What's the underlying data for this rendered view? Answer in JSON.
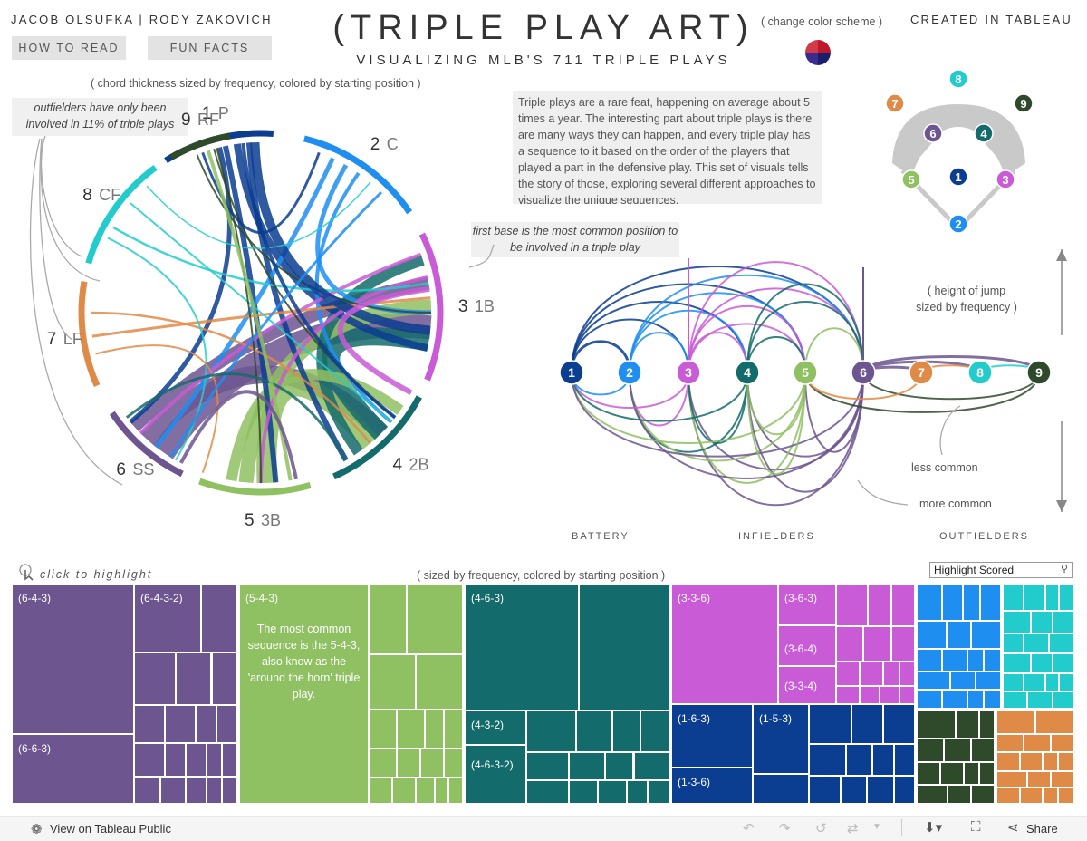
{
  "header": {
    "authors": "JACOB OLSUFKA | RODY ZAKOVICH",
    "how_to_read": "HOW TO READ",
    "fun_facts": "FUN FACTS",
    "title": "(TRIPLE PLAY ART)",
    "subtitle": "VISUALIZING MLB'S 711 TRIPLE PLAYS",
    "color_scheme": "( change color scheme )",
    "created": "CREATED IN TABLEAU"
  },
  "chord": {
    "caption": "( chord thickness sized by frequency, colored by starting position )",
    "note_outfielders": "outfielders have only been involved in 11% of triple plays",
    "note_firstbase": "first base is the most common position to be involved in a triple play",
    "positions": [
      {
        "num": "1",
        "abbr": "P",
        "color": "#0b3d91"
      },
      {
        "num": "2",
        "abbr": "C",
        "color": "#1f8ef1"
      },
      {
        "num": "3",
        "abbr": "1B",
        "color": "#c95bd6"
      },
      {
        "num": "4",
        "abbr": "2B",
        "color": "#146b6b"
      },
      {
        "num": "5",
        "abbr": "3B",
        "color": "#8fc062"
      },
      {
        "num": "6",
        "abbr": "SS",
        "color": "#6d5590"
      },
      {
        "num": "7",
        "abbr": "LF",
        "color": "#e08a47"
      },
      {
        "num": "8",
        "abbr": "CF",
        "color": "#22cccc"
      },
      {
        "num": "9",
        "abbr": "RF",
        "color": "#2f4a2b"
      }
    ]
  },
  "description": "Triple plays are a rare feat, happening on average about 5 times a year. The interesting part about triple plays is there are many ways they can happen, and every triple play has a sequence to it based on the order of the players that played a part in the defensive play. This set of visuals tells the story of those, exploring several different approaches to visualize the unique sequences.",
  "arc": {
    "height_note": "( height of jump sized by frequency )",
    "less_common": "less common",
    "more_common": "more common",
    "battery": "BATTERY",
    "infielders": "INFIELDERS",
    "outfielders": "OUTFIELDERS"
  },
  "treemap": {
    "click_hint": "click to highlight",
    "caption": "( sized by frequency, colored by starting position )",
    "search_value": "Highlight Scored",
    "labels": {
      "s643": "(6-4-3)",
      "s6432": "(6-4-3-2)",
      "s663": "(6-6-3)",
      "s543": "(5-4-3)",
      "s463": "(4-6-3)",
      "s432": "(4-3-2)",
      "s4632": "(4-6-3-2)",
      "s336": "(3-3-6)",
      "s363": "(3-6-3)",
      "s364": "(3-6-4)",
      "s334": "(3-3-4)",
      "s163": "(1-6-3)",
      "s153": "(1-5-3)",
      "s136": "(1-3-6)"
    },
    "annotation_543": "The most common sequence is the 5-4-3, also know as the 'around the horn' triple play."
  },
  "footer": {
    "view_on": "View on Tableau Public",
    "share": "Share"
  }
}
